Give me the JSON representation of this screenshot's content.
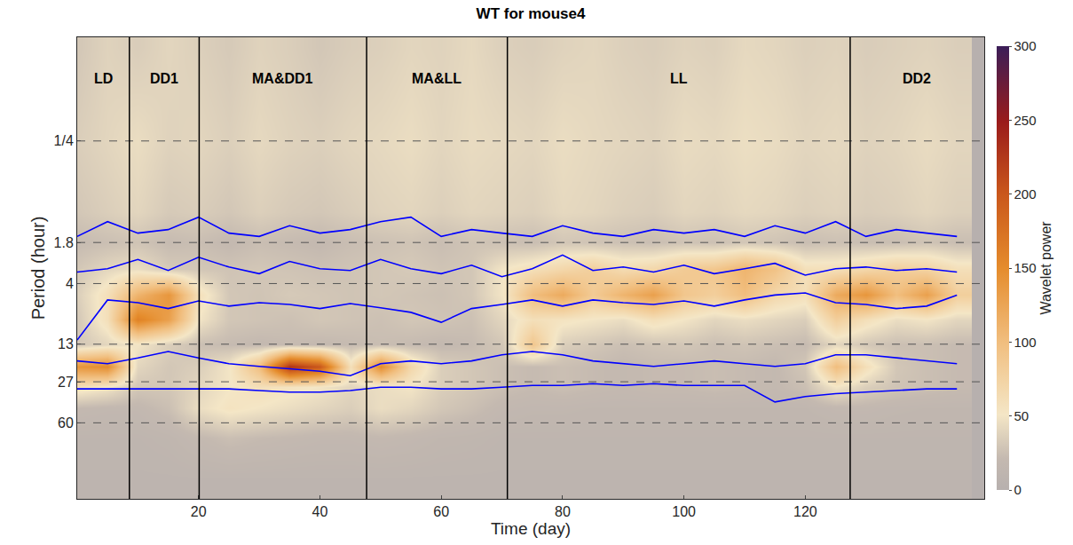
{
  "chart_data": {
    "type": "heatmap",
    "title": "WT for mouse4",
    "x_label": "Time (day)",
    "y_label": "Period (hour)",
    "log": "y",
    "grid": "y",
    "xlim": [
      0,
      149.5
    ],
    "xticks": [
      20,
      40,
      60,
      80,
      100,
      120
    ],
    "ylim": [
      263,
      0.0333
    ],
    "yticks": [
      {
        "value": 0.25,
        "label": "1/4"
      },
      1.8,
      4,
      13,
      27,
      60
    ],
    "x": [
      0,
      5,
      10,
      15,
      20,
      25,
      30,
      35,
      40,
      45,
      50,
      55,
      60,
      65,
      70,
      75,
      80,
      85,
      90,
      95,
      100,
      105,
      110,
      115,
      120,
      125,
      130,
      135,
      140,
      145
    ],
    "y": [
      0.04,
      0.25,
      1,
      1.8,
      3,
      5,
      8,
      13,
      20,
      30,
      45,
      80,
      180
    ],
    "z": [
      [
        30,
        38,
        34,
        40,
        36,
        32,
        38,
        35,
        30,
        34,
        36,
        40,
        38,
        42,
        36,
        34,
        38,
        40,
        36,
        34,
        38,
        36,
        42,
        40,
        36,
        38,
        34,
        36,
        38,
        35
      ],
      [
        35,
        40,
        45,
        38,
        40,
        36,
        42,
        38,
        36,
        40,
        42,
        45,
        40,
        44,
        42,
        40,
        45,
        42,
        40,
        38,
        44,
        42,
        46,
        44,
        40,
        42,
        38,
        40,
        44,
        40
      ],
      [
        30,
        35,
        40,
        32,
        34,
        30,
        36,
        32,
        30,
        34,
        38,
        40,
        36,
        40,
        38,
        36,
        42,
        40,
        36,
        34,
        40,
        38,
        42,
        40,
        36,
        38,
        34,
        36,
        40,
        36
      ],
      [
        22,
        25,
        28,
        22,
        24,
        20,
        24,
        22,
        20,
        24,
        26,
        28,
        24,
        28,
        26,
        24,
        30,
        28,
        26,
        24,
        28,
        26,
        30,
        28,
        24,
        26,
        24,
        24,
        28,
        24
      ],
      [
        30,
        40,
        45,
        32,
        30,
        28,
        30,
        28,
        26,
        28,
        30,
        32,
        28,
        30,
        50,
        60,
        70,
        80,
        65,
        70,
        85,
        90,
        110,
        95,
        60,
        60,
        70,
        80,
        75,
        60
      ],
      [
        35,
        60,
        110,
        140,
        60,
        30,
        28,
        32,
        30,
        28,
        30,
        28,
        26,
        30,
        50,
        100,
        120,
        85,
        110,
        130,
        90,
        80,
        100,
        70,
        60,
        120,
        140,
        100,
        130,
        80
      ],
      [
        30,
        60,
        160,
        130,
        50,
        30,
        28,
        26,
        30,
        28,
        26,
        30,
        28,
        26,
        40,
        60,
        55,
        50,
        45,
        60,
        50,
        40,
        45,
        40,
        35,
        80,
        60,
        45,
        50,
        40
      ],
      [
        30,
        40,
        50,
        35,
        25,
        22,
        20,
        22,
        20,
        22,
        24,
        22,
        20,
        22,
        30,
        90,
        35,
        30,
        25,
        28,
        30,
        25,
        28,
        25,
        22,
        40,
        30,
        25,
        25,
        22
      ],
      [
        140,
        150,
        40,
        30,
        35,
        50,
        100,
        230,
        200,
        60,
        150,
        70,
        35,
        30,
        25,
        22,
        25,
        22,
        20,
        22,
        22,
        24,
        22,
        20,
        30,
        100,
        60,
        30,
        25,
        22
      ],
      [
        60,
        50,
        30,
        30,
        40,
        50,
        60,
        55,
        50,
        40,
        45,
        50,
        35,
        30,
        25,
        22,
        25,
        22,
        20,
        22,
        22,
        24,
        22,
        20,
        25,
        50,
        35,
        28,
        25,
        22
      ],
      [
        20,
        18,
        18,
        25,
        45,
        55,
        50,
        45,
        40,
        35,
        45,
        40,
        30,
        25,
        18,
        16,
        16,
        15,
        15,
        15,
        15,
        15,
        15,
        15,
        15,
        18,
        18,
        16,
        15,
        15
      ],
      [
        12,
        12,
        12,
        14,
        20,
        25,
        22,
        20,
        18,
        18,
        20,
        18,
        15,
        14,
        12,
        12,
        12,
        12,
        12,
        12,
        12,
        12,
        12,
        12,
        12,
        12,
        12,
        12,
        12,
        12
      ],
      [
        10,
        10,
        10,
        10,
        10,
        10,
        10,
        10,
        10,
        10,
        10,
        10,
        10,
        10,
        10,
        10,
        10,
        10,
        10,
        10,
        10,
        10,
        10,
        10,
        10,
        10,
        10,
        10,
        10,
        10
      ]
    ],
    "colorbar": {
      "title": "Wavelet power",
      "range": [
        0,
        300
      ],
      "ticks": [
        0,
        50,
        100,
        150,
        200,
        250,
        300
      ]
    },
    "series": [
      {
        "color": "#0000ff",
        "values": [
          1.6,
          1.2,
          1.5,
          1.4,
          1.1,
          1.5,
          1.6,
          1.3,
          1.5,
          1.4,
          1.2,
          1.1,
          1.6,
          1.4,
          1.5,
          1.6,
          1.3,
          1.5,
          1.6,
          1.4,
          1.5,
          1.4,
          1.6,
          1.3,
          1.5,
          1.2,
          1.6,
          1.4,
          1.5,
          1.6
        ]
      },
      {
        "color": "#0000ff",
        "values": [
          3.2,
          3.0,
          2.5,
          3.1,
          2.4,
          2.9,
          3.3,
          2.6,
          3.0,
          3.1,
          2.5,
          3.0,
          3.3,
          2.8,
          3.5,
          3.0,
          2.3,
          3.1,
          2.9,
          3.2,
          2.8,
          3.3,
          3.0,
          2.7,
          3.4,
          3.0,
          2.9,
          3.1,
          3.0,
          3.2
        ]
      },
      {
        "color": "#0000ff",
        "values": [
          12,
          5.5,
          5.8,
          6.5,
          5.6,
          6.2,
          5.8,
          6.0,
          6.5,
          5.9,
          6.4,
          7.0,
          8.5,
          6.5,
          6.0,
          5.5,
          6.2,
          5.5,
          5.8,
          6.0,
          5.6,
          6.2,
          5.5,
          5.0,
          4.8,
          5.8,
          6.0,
          6.5,
          6.2,
          5.0
        ]
      },
      {
        "color": "#0000ff",
        "values": [
          18,
          19,
          17,
          15,
          17,
          19,
          20,
          21,
          22,
          24,
          19,
          18,
          19,
          18,
          16,
          15,
          16,
          18,
          19,
          20,
          19,
          18,
          19,
          20,
          19,
          16,
          16,
          17,
          18,
          19
        ]
      },
      {
        "color": "#0000ff",
        "values": [
          31,
          31,
          31,
          31,
          31,
          31,
          32,
          33,
          33,
          32,
          30,
          30,
          31,
          31,
          30,
          29,
          29,
          28,
          29,
          28,
          29,
          29,
          29,
          40,
          36,
          34,
          33,
          32,
          31,
          31
        ]
      }
    ],
    "phases": {
      "boundaries": [
        8.6,
        20.1,
        47.7,
        70.9,
        127.4
      ],
      "labels": [
        "LD",
        "DD1",
        "MA&DD1",
        "MA&LL",
        "LL",
        "DD2"
      ]
    }
  }
}
